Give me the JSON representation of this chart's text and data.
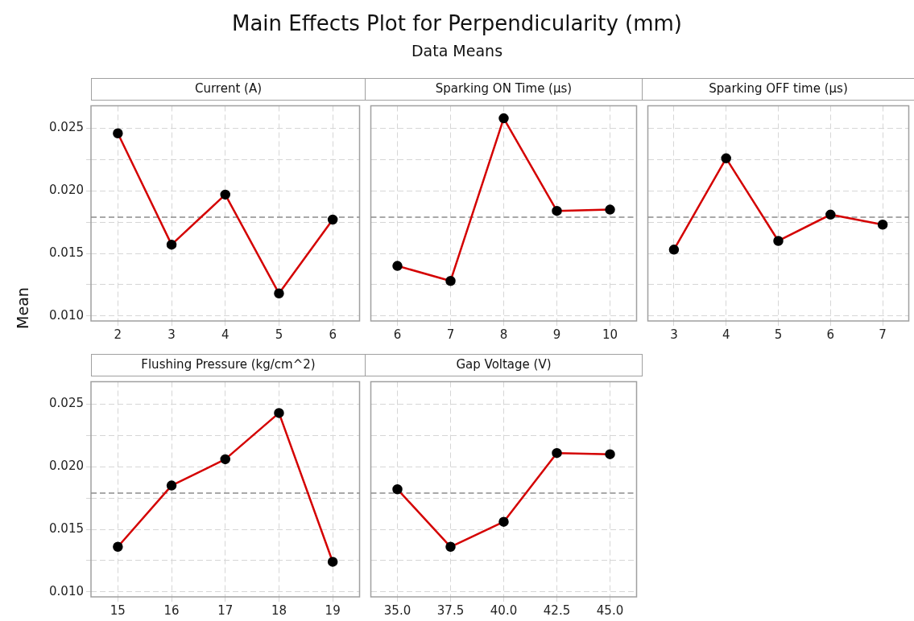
{
  "chart_data": [
    {
      "type": "other",
      "title": "Main Effects Plot for Perpendicularity (mm)",
      "subtitle": "Data Means",
      "ylabel": "Mean"
    },
    {
      "type": "line",
      "title": "Current (A)",
      "categories": [
        "2",
        "3",
        "4",
        "5",
        "6"
      ],
      "series": [
        {
          "color": "#d40000",
          "values": [
            0.0246,
            0.0157,
            0.0197,
            0.0118,
            0.0177
          ]
        }
      ],
      "ylim": [
        0.0096,
        0.0268
      ],
      "yticks": [
        {
          "value": 0.01,
          "label": "0.010"
        },
        {
          "value": 0.0125,
          "label": null
        },
        {
          "value": 0.015,
          "label": "0.015"
        },
        {
          "value": 0.0175,
          "label": null
        },
        {
          "value": 0.02,
          "label": "0.020"
        },
        {
          "value": 0.0225,
          "label": null
        },
        {
          "value": 0.025,
          "label": "0.025"
        }
      ],
      "ref_lines": [
        {
          "axis": "y",
          "value": 0.0179,
          "color": "#8c8c8c",
          "line_style": "dashed"
        }
      ],
      "grid": true,
      "marker": "circle",
      "line_style": "solid"
    },
    {
      "type": "line",
      "title": "Sparking ON Time (µs)",
      "categories": [
        "6",
        "7",
        "8",
        "9",
        "10"
      ],
      "series": [
        {
          "color": "#d40000",
          "values": [
            0.014,
            0.0128,
            0.0258,
            0.0184,
            0.0185
          ]
        }
      ],
      "ylim": [
        0.0096,
        0.0268
      ],
      "yticks": [
        {
          "value": 0.01,
          "label": null
        },
        {
          "value": 0.0125,
          "label": null
        },
        {
          "value": 0.015,
          "label": null
        },
        {
          "value": 0.0175,
          "label": null
        },
        {
          "value": 0.02,
          "label": null
        },
        {
          "value": 0.0225,
          "label": null
        },
        {
          "value": 0.025,
          "label": null
        }
      ],
      "ref_lines": [
        {
          "axis": "y",
          "value": 0.0179,
          "color": "#8c8c8c",
          "line_style": "dashed"
        }
      ],
      "grid": true,
      "marker": "circle",
      "line_style": "solid",
      "tick_labels": "x"
    },
    {
      "type": "line",
      "title": "Sparking OFF time (µs)",
      "categories": [
        "3",
        "4",
        "5",
        "6",
        "7"
      ],
      "series": [
        {
          "color": "#d40000",
          "values": [
            0.0153,
            0.0226,
            0.016,
            0.0181,
            0.0173
          ]
        }
      ],
      "ylim": [
        0.0096,
        0.0268
      ],
      "yticks": [
        {
          "value": 0.01,
          "label": null
        },
        {
          "value": 0.0125,
          "label": null
        },
        {
          "value": 0.015,
          "label": null
        },
        {
          "value": 0.0175,
          "label": null
        },
        {
          "value": 0.02,
          "label": null
        },
        {
          "value": 0.0225,
          "label": null
        },
        {
          "value": 0.025,
          "label": null
        }
      ],
      "ref_lines": [
        {
          "axis": "y",
          "value": 0.0179,
          "color": "#8c8c8c",
          "line_style": "dashed"
        }
      ],
      "grid": true,
      "marker": "circle",
      "line_style": "solid",
      "tick_labels": "x"
    },
    {
      "type": "line",
      "title": "Flushing Pressure (kg/cm^2)",
      "categories": [
        "15",
        "16",
        "17",
        "18",
        "19"
      ],
      "series": [
        {
          "color": "#d40000",
          "values": [
            0.0136,
            0.0185,
            0.0206,
            0.0243,
            0.0124
          ]
        }
      ],
      "ylim": [
        0.0096,
        0.0268
      ],
      "yticks": [
        {
          "value": 0.01,
          "label": "0.010"
        },
        {
          "value": 0.0125,
          "label": null
        },
        {
          "value": 0.015,
          "label": "0.015"
        },
        {
          "value": 0.0175,
          "label": null
        },
        {
          "value": 0.02,
          "label": "0.020"
        },
        {
          "value": 0.0225,
          "label": null
        },
        {
          "value": 0.025,
          "label": "0.025"
        }
      ],
      "ref_lines": [
        {
          "axis": "y",
          "value": 0.0179,
          "color": "#8c8c8c",
          "line_style": "dashed"
        }
      ],
      "grid": true,
      "marker": "circle",
      "line_style": "solid"
    },
    {
      "type": "line",
      "title": "Gap Voltage (V)",
      "categories": [
        "35.0",
        "37.5",
        "40.0",
        "42.5",
        "45.0"
      ],
      "series": [
        {
          "color": "#d40000",
          "values": [
            0.0182,
            0.0136,
            0.0156,
            0.0211,
            0.021
          ]
        }
      ],
      "ylim": [
        0.0096,
        0.0268
      ],
      "yticks": [
        {
          "value": 0.01,
          "label": null
        },
        {
          "value": 0.0125,
          "label": null
        },
        {
          "value": 0.015,
          "label": null
        },
        {
          "value": 0.0175,
          "label": null
        },
        {
          "value": 0.02,
          "label": null
        },
        {
          "value": 0.0225,
          "label": null
        },
        {
          "value": 0.025,
          "label": null
        }
      ],
      "ref_lines": [
        {
          "axis": "y",
          "value": 0.0179,
          "color": "#8c8c8c",
          "line_style": "dashed"
        }
      ],
      "grid": true,
      "marker": "circle",
      "line_style": "solid",
      "tick_labels": "x"
    }
  ]
}
